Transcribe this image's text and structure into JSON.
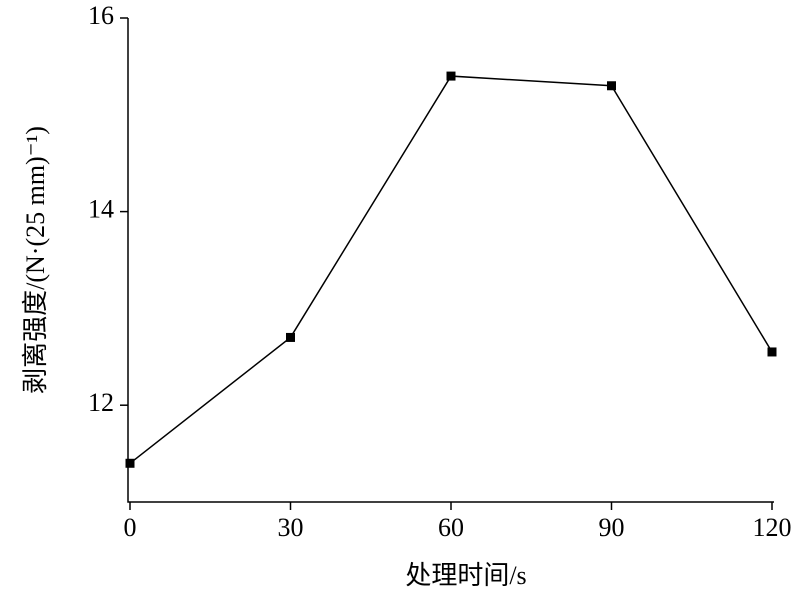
{
  "chart_data": {
    "type": "line",
    "x_label": "处理时间/s",
    "y_label": "剥离强度/(N·(25 mm)⁻¹)",
    "x": [
      0,
      30,
      60,
      90,
      120
    ],
    "series": [
      {
        "color": "#000000",
        "marker": "square",
        "values": [
          11.4,
          12.7,
          15.4,
          15.3,
          12.55
        ]
      }
    ],
    "xlim": [
      0,
      120
    ],
    "xticks": [
      0,
      30,
      60,
      90,
      120
    ],
    "ylim": [
      11,
      16
    ],
    "yticks": [
      12,
      14,
      16
    ],
    "grid": false
  }
}
